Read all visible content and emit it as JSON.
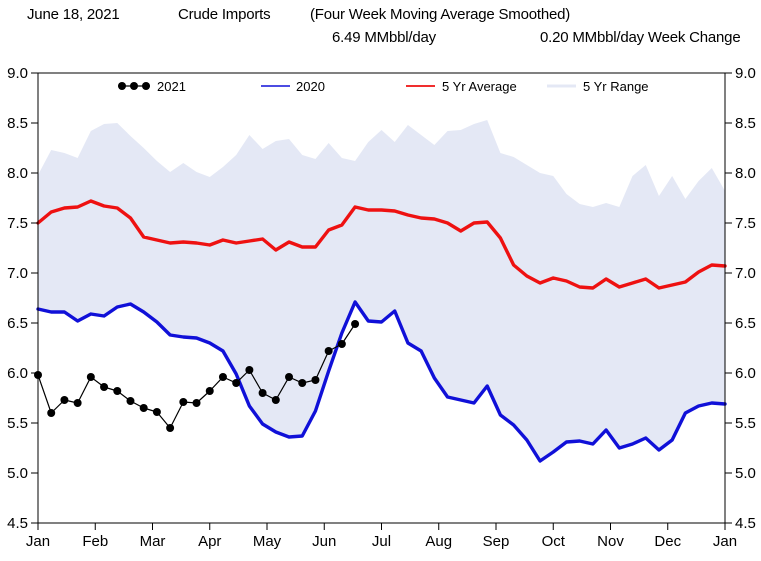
{
  "header": {
    "date": "June 18, 2021",
    "title": "Crude Imports",
    "subtitle": "(Four Week Moving Average Smoothed)",
    "current_value": "6.49 MMbbl/day",
    "week_change": "0.20 MMbbl/day Week Change"
  },
  "legend": {
    "items": [
      {
        "label": "2021",
        "marker": "black-dots-line",
        "color": "#000000"
      },
      {
        "label": "2020",
        "marker": "line",
        "color": "#1010d8"
      },
      {
        "label": "5 Yr Average",
        "marker": "line",
        "color": "#ee1111"
      },
      {
        "label": "5 Yr Range",
        "marker": "band-line",
        "color": "#e4e8f5"
      }
    ]
  },
  "chart_data": {
    "type": "line",
    "title": "Crude Imports (Four Week Moving Average Smoothed)",
    "unit": "MMbbl/day",
    "ylim": [
      4.5,
      9.0
    ],
    "yticks": [
      9.0,
      8.5,
      8.0,
      7.5,
      7.0,
      6.5,
      6.0,
      5.5,
      5.0,
      4.5
    ],
    "x_months": [
      "Jan",
      "Feb",
      "Mar",
      "Apr",
      "May",
      "Jun",
      "Jul",
      "Aug",
      "Sep",
      "Oct",
      "Nov",
      "Dec",
      "Jan"
    ],
    "weeks_per_year": 52,
    "grid": false,
    "legend_position": "top-inside",
    "series": [
      {
        "name": "2021",
        "style": "line+markers",
        "color": "#000000",
        "values": [
          5.98,
          5.6,
          5.73,
          5.7,
          5.96,
          5.86,
          5.82,
          5.72,
          5.65,
          5.61,
          5.45,
          5.71,
          5.7,
          5.82,
          5.96,
          5.9,
          6.03,
          5.8,
          5.73,
          5.96,
          5.9,
          5.93,
          6.22,
          6.29,
          6.49
        ]
      },
      {
        "name": "2020",
        "style": "line",
        "color": "#1010d8",
        "values": [
          6.64,
          6.61,
          6.61,
          6.52,
          6.59,
          6.57,
          6.66,
          6.69,
          6.61,
          6.51,
          6.38,
          6.36,
          6.35,
          6.3,
          6.22,
          5.99,
          5.67,
          5.49,
          5.41,
          5.36,
          5.37,
          5.62,
          6.02,
          6.4,
          6.71,
          6.52,
          6.51,
          6.62,
          6.3,
          6.22,
          5.95,
          5.76,
          5.73,
          5.7,
          5.87,
          5.58,
          5.48,
          5.33,
          5.12,
          5.21,
          5.31,
          5.32,
          5.29,
          5.43,
          5.25,
          5.29,
          5.35,
          5.23,
          5.33,
          5.6,
          5.67,
          5.7,
          5.69
        ]
      },
      {
        "name": "5 Yr Average",
        "style": "line",
        "color": "#ee1111",
        "values": [
          7.5,
          7.61,
          7.65,
          7.66,
          7.72,
          7.67,
          7.65,
          7.55,
          7.36,
          7.33,
          7.3,
          7.31,
          7.3,
          7.28,
          7.33,
          7.3,
          7.32,
          7.34,
          7.23,
          7.31,
          7.26,
          7.26,
          7.43,
          7.48,
          7.66,
          7.63,
          7.63,
          7.62,
          7.58,
          7.55,
          7.54,
          7.5,
          7.42,
          7.5,
          7.51,
          7.35,
          7.08,
          6.97,
          6.9,
          6.95,
          6.92,
          6.86,
          6.85,
          6.94,
          6.86,
          6.9,
          6.94,
          6.85,
          6.88,
          6.91,
          7.01,
          7.08,
          7.07
        ]
      },
      {
        "name": "5 Yr Range",
        "style": "band",
        "color": "#e4e8f5",
        "top": [
          7.98,
          8.23,
          8.2,
          8.15,
          8.42,
          8.49,
          8.5,
          8.37,
          8.25,
          8.12,
          8.01,
          8.1,
          8.01,
          7.96,
          8.06,
          8.18,
          8.38,
          8.24,
          8.32,
          8.34,
          8.18,
          8.14,
          8.3,
          8.15,
          8.12,
          8.31,
          8.43,
          8.31,
          8.48,
          8.38,
          8.28,
          8.42,
          8.43,
          8.49,
          8.53,
          8.2,
          8.16,
          8.08,
          8.0,
          7.97,
          7.79,
          7.69,
          7.66,
          7.7,
          7.66,
          7.97,
          8.08,
          7.77,
          7.97,
          7.74,
          7.92,
          8.05,
          7.82
        ],
        "bottom": [
          6.64,
          6.61,
          6.61,
          6.52,
          6.59,
          6.57,
          6.66,
          6.69,
          6.61,
          6.51,
          6.38,
          6.36,
          6.35,
          6.3,
          6.22,
          5.99,
          5.67,
          5.49,
          5.41,
          5.36,
          5.37,
          5.62,
          6.02,
          6.4,
          6.71,
          6.52,
          6.51,
          6.62,
          6.3,
          6.22,
          5.95,
          5.76,
          5.73,
          5.7,
          5.87,
          5.58,
          5.48,
          5.33,
          5.12,
          5.21,
          5.31,
          5.32,
          5.29,
          5.43,
          5.25,
          5.29,
          5.35,
          5.23,
          5.33,
          5.6,
          5.67,
          5.7,
          5.69
        ]
      }
    ]
  },
  "colors": {
    "series_2021": "#000000",
    "series_2020": "#1010d8",
    "five_yr_average": "#ee1111",
    "five_yr_range": "#e4e8f5",
    "axis": "#000000",
    "background": "#ffffff"
  }
}
